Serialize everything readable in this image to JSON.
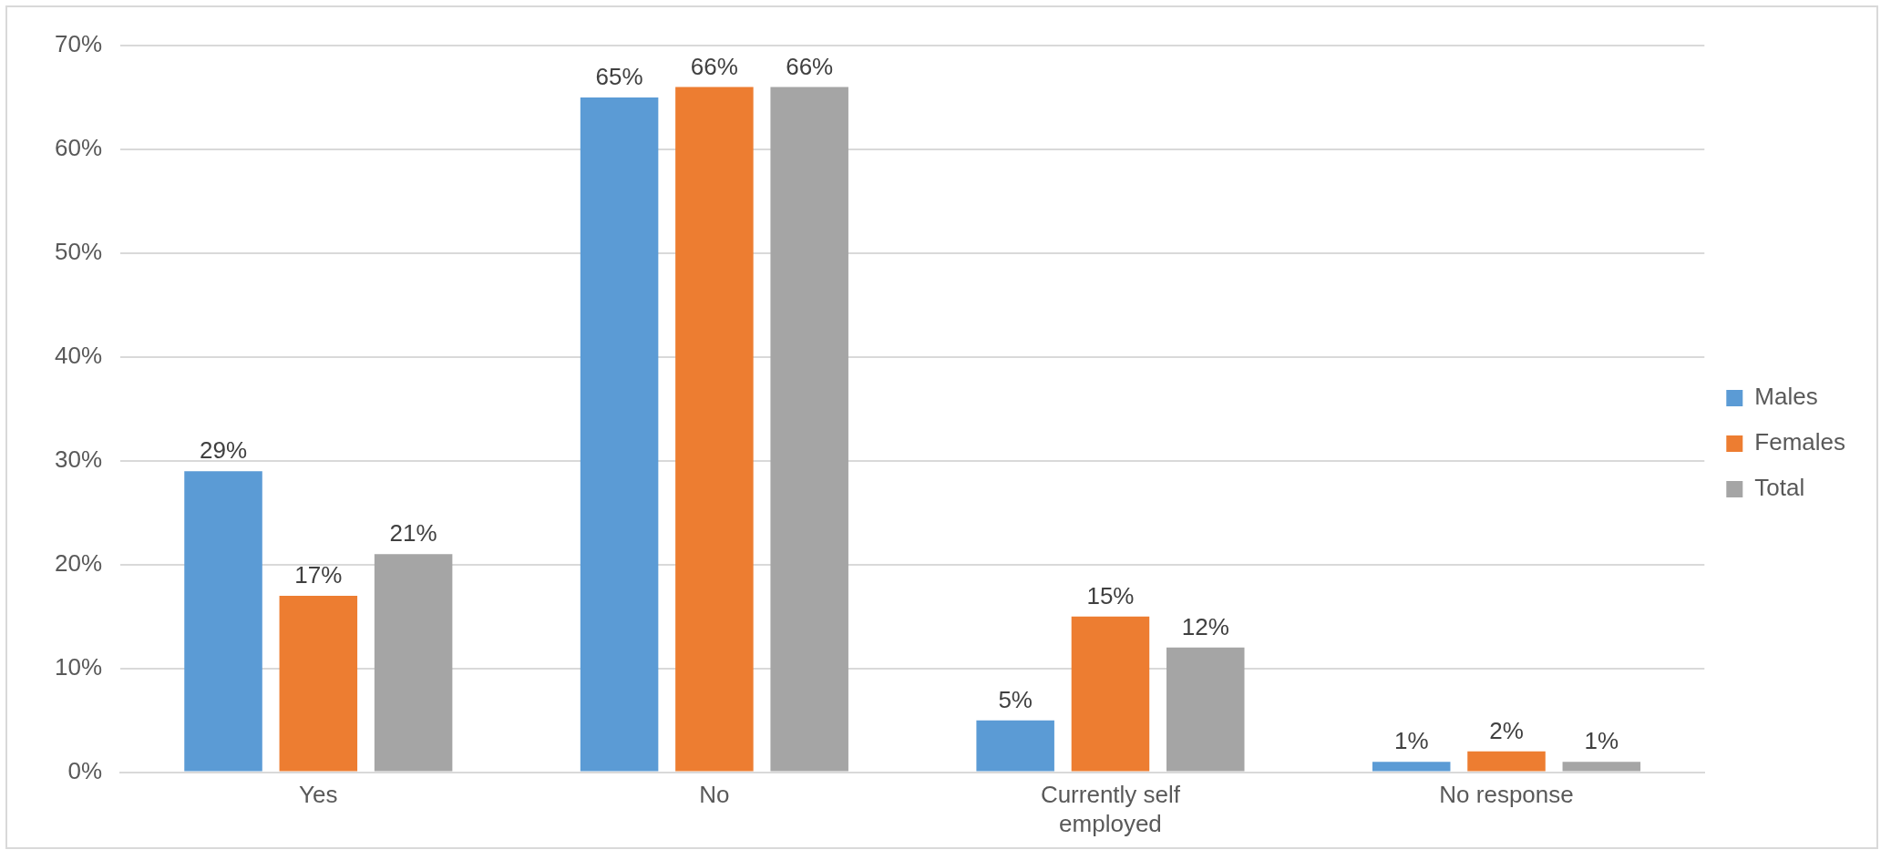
{
  "chart_data": {
    "type": "bar",
    "categories": [
      "Yes",
      "No",
      "Currently self employed",
      "No response"
    ],
    "series": [
      {
        "name": "Males",
        "color": "#5b9bd5",
        "values": [
          29,
          65,
          5,
          1
        ],
        "value_labels": [
          "29%",
          "65%",
          "5%",
          "1%"
        ]
      },
      {
        "name": "Females",
        "color": "#ed7d31",
        "values": [
          17,
          66,
          15,
          2
        ],
        "value_labels": [
          "17%",
          "66%",
          "15%",
          "2%"
        ]
      },
      {
        "name": "Total",
        "color": "#a5a5a5",
        "values": [
          21,
          66,
          12,
          1
        ],
        "value_labels": [
          "21%",
          "66%",
          "12%",
          "1%"
        ]
      }
    ],
    "ylim": [
      0,
      70
    ],
    "yticks": [
      {
        "value": 0,
        "label": "0%"
      },
      {
        "value": 10,
        "label": "10%"
      },
      {
        "value": 20,
        "label": "20%"
      },
      {
        "value": 30,
        "label": "30%"
      },
      {
        "value": 40,
        "label": "40%"
      },
      {
        "value": 50,
        "label": "50%"
      },
      {
        "value": 60,
        "label": "60%"
      },
      {
        "value": 70,
        "label": "70%"
      }
    ],
    "grid": "y",
    "legend": "right"
  }
}
